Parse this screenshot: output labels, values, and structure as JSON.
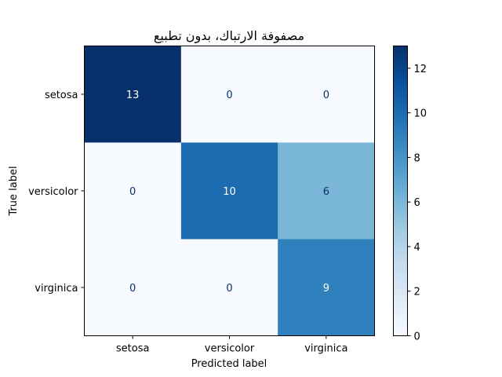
{
  "chart_data": {
    "type": "heatmap",
    "title": "مصفوفة الارتباك، بدون تطبيع",
    "xlabel": "Predicted label",
    "ylabel": "True label",
    "x_categories": [
      "setosa",
      "versicolor",
      "virginica"
    ],
    "y_categories": [
      "setosa",
      "versicolor",
      "virginica"
    ],
    "matrix": [
      [
        13,
        0,
        0
      ],
      [
        0,
        10,
        6
      ],
      [
        0,
        0,
        9
      ]
    ],
    "colormap": "Blues",
    "vmin": 0,
    "vmax": 13,
    "colorbar_ticks": [
      0,
      2,
      4,
      6,
      8,
      10,
      12
    ],
    "colorbar_tick_labels": [
      "0",
      "2",
      "4",
      "6",
      "8",
      "10",
      "12"
    ],
    "text_color_light": "#ffffff",
    "text_color_dark": "#08306b"
  }
}
